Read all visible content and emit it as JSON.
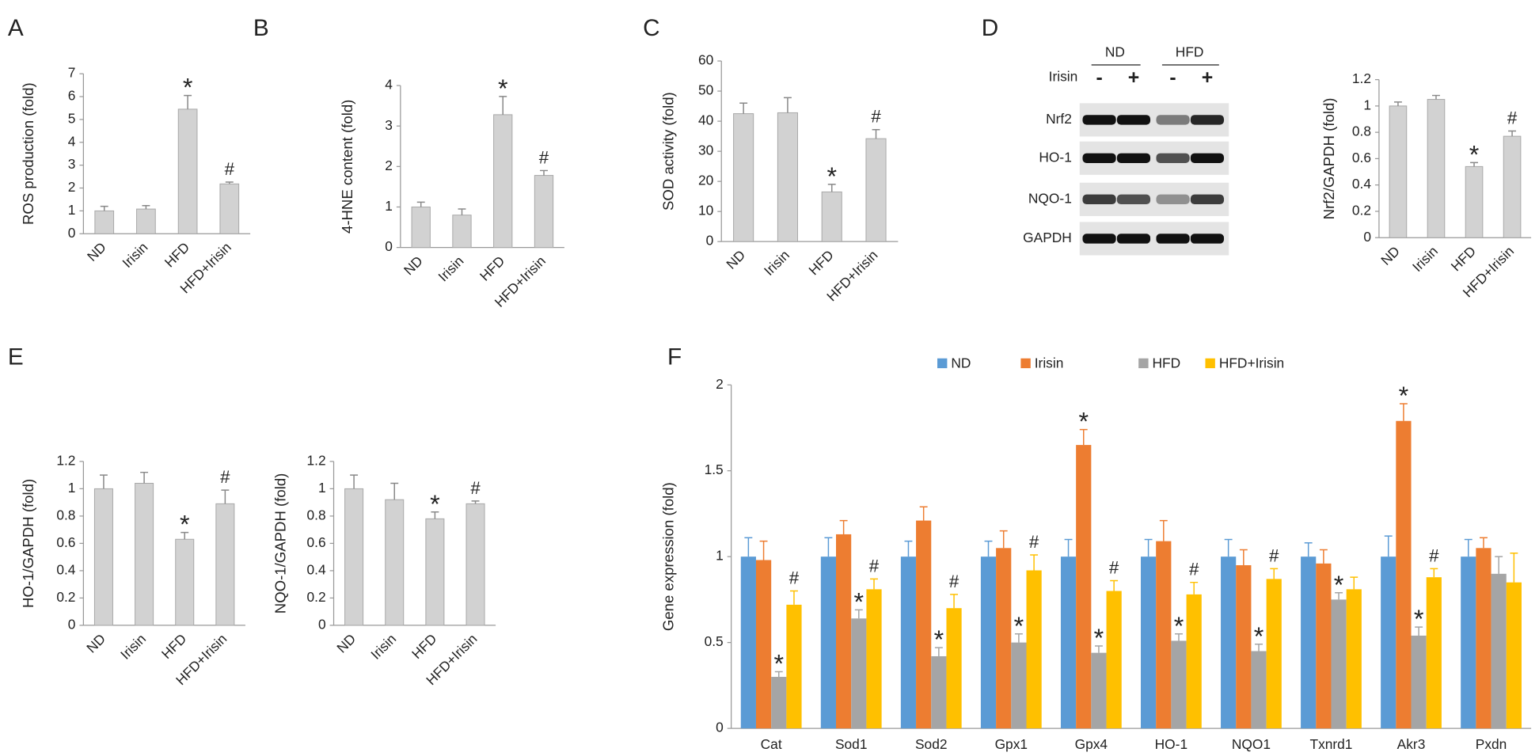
{
  "chart_data": [
    {
      "type": "bar",
      "panel": "A",
      "y_label": "ROS production (fold)",
      "categories": [
        "ND",
        "Irisin",
        "HFD",
        "HFD+Irisin"
      ],
      "values": [
        1.0,
        1.08,
        5.45,
        2.18
      ],
      "errors": [
        0.2,
        0.15,
        0.6,
        0.08
      ],
      "annotations": [
        null,
        null,
        "*",
        "#"
      ],
      "color": "#d2d2d2",
      "ylim": [
        0,
        7
      ],
      "yticks": [
        0,
        1,
        2,
        3,
        4,
        5,
        6,
        7
      ]
    },
    {
      "type": "bar",
      "panel": "B",
      "y_label": "4-HNE content (fold)",
      "categories": [
        "ND",
        "Irisin",
        "HFD",
        "HFD+Irisin"
      ],
      "values": [
        1.0,
        0.8,
        3.28,
        1.78
      ],
      "errors": [
        0.12,
        0.15,
        0.45,
        0.12
      ],
      "annotations": [
        null,
        null,
        "*",
        "#"
      ],
      "color": "#d2d2d2",
      "ylim": [
        0,
        4
      ],
      "yticks": [
        0,
        1,
        2,
        3,
        4
      ]
    },
    {
      "type": "bar",
      "panel": "C",
      "y_label": "SOD activity (fold)",
      "categories": [
        "ND",
        "Irisin",
        "HFD",
        "HFD+Irisin"
      ],
      "values": [
        42.5,
        42.8,
        16.5,
        34.2
      ],
      "errors": [
        3.5,
        5,
        2.5,
        3
      ],
      "annotations": [
        null,
        null,
        "*",
        "#"
      ],
      "color": "#d2d2d2",
      "ylim": [
        0,
        60
      ],
      "yticks": [
        0,
        10,
        20,
        30,
        40,
        50,
        60
      ]
    },
    {
      "type": "bar",
      "panel": "D",
      "y_label": "Nrf2/GAPDH (fold)",
      "categories": [
        "ND",
        "Irisin",
        "HFD",
        "HFD+Irisin"
      ],
      "values": [
        1.0,
        1.05,
        0.54,
        0.77
      ],
      "errors": [
        0.03,
        0.03,
        0.03,
        0.04
      ],
      "annotations": [
        null,
        null,
        "*",
        "#"
      ],
      "color": "#d2d2d2",
      "ylim": [
        0,
        1.2
      ],
      "yticks": [
        0,
        0.2,
        0.4,
        0.6,
        0.8,
        1,
        1.2
      ],
      "blot": {
        "groups": [
          "ND",
          "HFD"
        ],
        "treatment": "Irisin",
        "signs": [
          "-",
          "+",
          "-",
          "+"
        ],
        "rows": [
          "Nrf2",
          "HO-1",
          "NQO-1",
          "GAPDH"
        ]
      }
    },
    {
      "type": "bar",
      "panel": "E",
      "y_label": "HO-1/GAPDH (fold)",
      "categories": [
        "ND",
        "Irisin",
        "HFD",
        "HFD+Irisin"
      ],
      "values": [
        1.0,
        1.04,
        0.63,
        0.89
      ],
      "errors": [
        0.1,
        0.08,
        0.05,
        0.1
      ],
      "annotations": [
        null,
        null,
        "*",
        "#"
      ],
      "color": "#d2d2d2",
      "ylim": [
        0,
        1.2
      ],
      "yticks": [
        0,
        0.2,
        0.4,
        0.6,
        0.8,
        1,
        1.2
      ]
    },
    {
      "type": "bar",
      "y_label": "NQO-1/GAPDH (fold)",
      "categories": [
        "ND",
        "Irisin",
        "HFD",
        "HFD+Irisin"
      ],
      "values": [
        1.0,
        0.92,
        0.78,
        0.89
      ],
      "errors": [
        0.1,
        0.12,
        0.05,
        0.02
      ],
      "annotations": [
        null,
        null,
        "*",
        "#"
      ],
      "color": "#d2d2d2",
      "ylim": [
        0,
        1.2
      ],
      "yticks": [
        0,
        0.2,
        0.4,
        0.6,
        0.8,
        1,
        1.2
      ]
    },
    {
      "type": "bar",
      "panel": "F",
      "y_label": "Gene expression  (fold)",
      "categories": [
        "Cat",
        "Sod1",
        "Sod2",
        "Gpx1",
        "Gpx4",
        "HO-1",
        "NQO1",
        "Txnrd1",
        "Akr3",
        "Pxdn"
      ],
      "series": [
        {
          "name": "ND",
          "color": "#5b9bd5",
          "values": [
            1,
            1,
            1,
            1,
            1,
            1,
            1,
            1,
            1,
            1
          ],
          "errors": [
            0.11,
            0.11,
            0.09,
            0.09,
            0.1,
            0.1,
            0.1,
            0.08,
            0.12,
            0.1
          ],
          "annotations": [
            null,
            null,
            null,
            null,
            null,
            null,
            null,
            null,
            null,
            null
          ]
        },
        {
          "name": "Irisin",
          "color": "#ed7d31",
          "values": [
            0.98,
            1.13,
            1.21,
            1.05,
            1.65,
            1.09,
            0.95,
            0.96,
            1.79,
            1.05
          ],
          "errors": [
            0.11,
            0.08,
            0.08,
            0.1,
            0.09,
            0.12,
            0.09,
            0.08,
            0.1,
            0.06
          ],
          "annotations": [
            null,
            null,
            null,
            null,
            "*",
            null,
            null,
            null,
            "*",
            null
          ]
        },
        {
          "name": "HFD",
          "color": "#a5a5a5",
          "values": [
            0.3,
            0.64,
            0.42,
            0.5,
            0.44,
            0.51,
            0.45,
            0.75,
            0.54,
            0.9
          ],
          "errors": [
            0.03,
            0.05,
            0.05,
            0.05,
            0.04,
            0.04,
            0.04,
            0.04,
            0.05,
            0.1
          ],
          "annotations": [
            "*",
            "*",
            "*",
            "*",
            "*",
            "*",
            "*",
            "*",
            "*",
            null
          ]
        },
        {
          "name": "HFD+Irisin",
          "color": "#ffc000",
          "values": [
            0.72,
            0.81,
            0.7,
            0.92,
            0.8,
            0.78,
            0.87,
            0.81,
            0.88,
            0.85
          ],
          "errors": [
            0.08,
            0.06,
            0.08,
            0.09,
            0.06,
            0.07,
            0.06,
            0.07,
            0.05,
            0.17
          ],
          "annotations": [
            "#",
            "#",
            "#",
            "#",
            "#",
            "#",
            "#",
            null,
            "#",
            null
          ]
        }
      ],
      "ylim": [
        0,
        2
      ],
      "yticks": [
        0,
        0.5,
        1,
        1.5,
        2
      ]
    }
  ]
}
